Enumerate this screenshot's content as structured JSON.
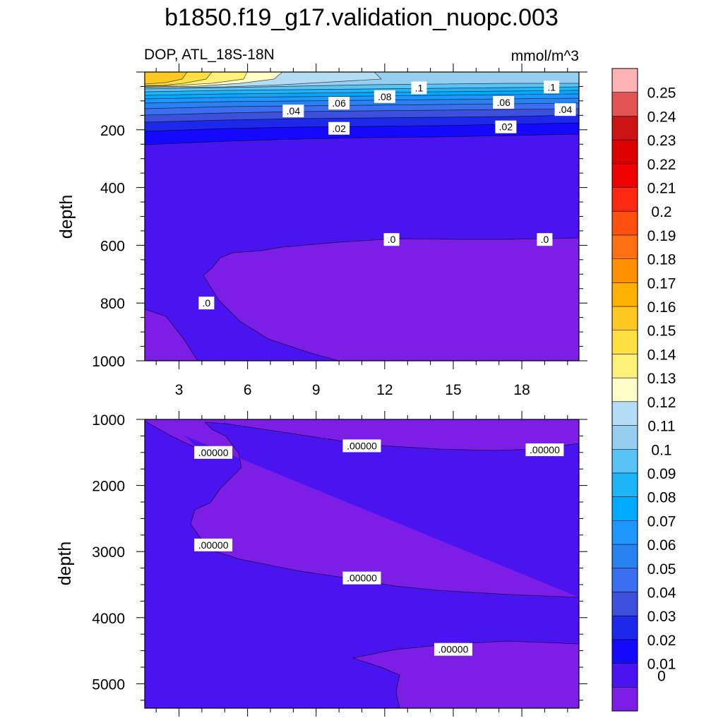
{
  "title": "b1850.f19_g17.validation_nuopc.003",
  "upper_panel": {
    "left_label": "DOP, ATL_18S-18N",
    "right_label": "mmol/m^3",
    "ylabel": "depth"
  },
  "lower_panel": {
    "ylabel": "depth"
  },
  "chart_data": [
    {
      "type": "contour",
      "panel": "upper",
      "x_ticks": [
        3,
        6,
        9,
        12,
        15,
        18
      ],
      "x_range": [
        1.5,
        20.5
      ],
      "y_ticks": [
        200,
        400,
        600,
        800,
        1000
      ],
      "y_range": [
        0,
        1000
      ],
      "y_reversed": true,
      "grid": false,
      "contour_labels": [
        {
          "text": ".1",
          "x": 13.5,
          "y": 55
        },
        {
          "text": ".1",
          "x": 19.3,
          "y": 52
        },
        {
          "text": ".08",
          "x": 12.0,
          "y": 85
        },
        {
          "text": ".06",
          "x": 10.0,
          "y": 108
        },
        {
          "text": ".06",
          "x": 17.2,
          "y": 105
        },
        {
          "text": ".04",
          "x": 8.0,
          "y": 135
        },
        {
          "text": ".04",
          "x": 19.9,
          "y": 130
        },
        {
          "text": ".02",
          "x": 10.0,
          "y": 195
        },
        {
          "text": ".02",
          "x": 17.3,
          "y": 190
        },
        {
          "text": ".0",
          "x": 12.3,
          "y": 580
        },
        {
          "text": ".0",
          "x": 19.0,
          "y": 580
        },
        {
          "text": ".0",
          "x": 4.2,
          "y": 800
        }
      ]
    },
    {
      "type": "contour",
      "panel": "lower",
      "x_range": [
        1.5,
        20.5
      ],
      "y_ticks": [
        1000,
        2000,
        3000,
        4000,
        5000
      ],
      "y_range": [
        1000,
        5370
      ],
      "y_reversed": true,
      "grid": false,
      "contour_labels": [
        {
          "text": ".00000",
          "x": 4.5,
          "y": 1500
        },
        {
          "text": ".00000",
          "x": 11.0,
          "y": 1400
        },
        {
          "text": ".00000",
          "x": 19.0,
          "y": 1460
        },
        {
          "text": ".00000",
          "x": 4.5,
          "y": 2900
        },
        {
          "text": ".00000",
          "x": 11.0,
          "y": 3400
        },
        {
          "text": ".00000",
          "x": 15.0,
          "y": 4480
        }
      ]
    }
  ],
  "colorbar": {
    "labels": [
      "0.25",
      "0.24",
      "0.23",
      "0.22",
      "0.21",
      "0.2",
      "0.19",
      "0.18",
      "0.17",
      "0.16",
      "0.15",
      "0.14",
      "0.13",
      "0.12",
      "0.11",
      "0.1",
      "0.09",
      "0.08",
      "0.07",
      "0.06",
      "0.05",
      "0.04",
      "0.03",
      "0.02",
      "0.01",
      "0"
    ],
    "colors": [
      "#FFB1B4",
      "#E25454",
      "#CC1414",
      "#DC0000",
      "#F00000",
      "#FF2810",
      "#FF5010",
      "#FF7010",
      "#FF9000",
      "#FFB000",
      "#FFC820",
      "#FFE040",
      "#FFF07A",
      "#FFFDC8",
      "#B4DCF5",
      "#96CEF0",
      "#5AC3F5",
      "#1EB4FA",
      "#00AAFF",
      "#1E96FF",
      "#2882F0",
      "#3C6EF0",
      "#3C50DC",
      "#1E28EB",
      "#1408FF",
      "#4A14F0",
      "#7D1EE6"
    ]
  },
  "colors": {
    "c0": "#7D1EE6",
    "c001": "#4A14F0",
    "c002": "#1408FF",
    "c003": "#1E28EB",
    "c004": "#3C50DC",
    "c005": "#3C6EF0",
    "c006": "#2882F0",
    "c007": "#1E96FF",
    "c008": "#00AAFF",
    "c009": "#1EB4FA",
    "c010": "#5AC3F5",
    "c011": "#96CEF0",
    "c012": "#B4DCF5",
    "c013": "#FFFDC8",
    "c014": "#FFF07A",
    "c015": "#FFE040",
    "c016": "#FFC820"
  }
}
